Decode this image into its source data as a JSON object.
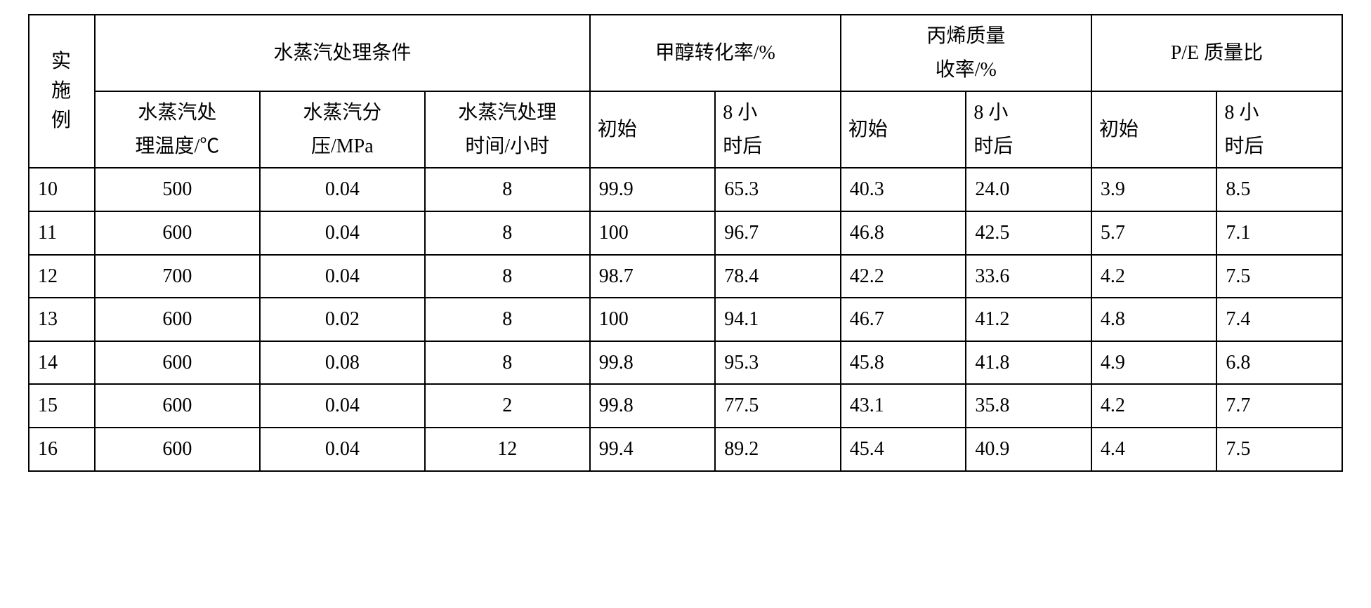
{
  "table": {
    "header": {
      "col_ex": "实\n施\n例",
      "group_steam": "水蒸汽处理条件",
      "group_conv": "甲醇转化率/%",
      "group_yield": "丙烯质量\n收率/%",
      "group_pe": "P/E 质量比",
      "sub_temp": "水蒸汽处\n理温度/℃",
      "sub_press": "水蒸汽分\n压/MPa",
      "sub_time": "水蒸汽处理\n时间/小时",
      "sub_init": "初始",
      "sub_8h": "8 小\n时后"
    },
    "rows": [
      {
        "ex": "10",
        "temp": "500",
        "press": "0.04",
        "time": "8",
        "conv_i": "99.9",
        "conv_8": "65.3",
        "y_i": "40.3",
        "y_8": "24.0",
        "pe_i": "3.9",
        "pe_8": "8.5"
      },
      {
        "ex": "11",
        "temp": "600",
        "press": "0.04",
        "time": "8",
        "conv_i": "100",
        "conv_8": "96.7",
        "y_i": "46.8",
        "y_8": "42.5",
        "pe_i": "5.7",
        "pe_8": "7.1"
      },
      {
        "ex": "12",
        "temp": "700",
        "press": "0.04",
        "time": "8",
        "conv_i": "98.7",
        "conv_8": "78.4",
        "y_i": "42.2",
        "y_8": "33.6",
        "pe_i": "4.2",
        "pe_8": "7.5"
      },
      {
        "ex": "13",
        "temp": "600",
        "press": "0.02",
        "time": "8",
        "conv_i": "100",
        "conv_8": "94.1",
        "y_i": "46.7",
        "y_8": "41.2",
        "pe_i": "4.8",
        "pe_8": "7.4"
      },
      {
        "ex": "14",
        "temp": "600",
        "press": "0.08",
        "time": "8",
        "conv_i": "99.8",
        "conv_8": "95.3",
        "y_i": "45.8",
        "y_8": "41.8",
        "pe_i": "4.9",
        "pe_8": "6.8"
      },
      {
        "ex": "15",
        "temp": "600",
        "press": "0.04",
        "time": "2",
        "conv_i": "99.8",
        "conv_8": "77.5",
        "y_i": "43.1",
        "y_8": "35.8",
        "pe_i": "4.2",
        "pe_8": "7.7"
      },
      {
        "ex": "16",
        "temp": "600",
        "press": "0.04",
        "time": "12",
        "conv_i": "99.4",
        "conv_8": "89.2",
        "y_i": "45.4",
        "y_8": "40.9",
        "pe_i": "4.4",
        "pe_8": "7.5"
      }
    ],
    "style": {
      "border_color": "#000000",
      "background_color": "#ffffff",
      "font_family": "SimSun",
      "header_fontsize_pt": 21,
      "cell_fontsize_pt": 21
    }
  }
}
